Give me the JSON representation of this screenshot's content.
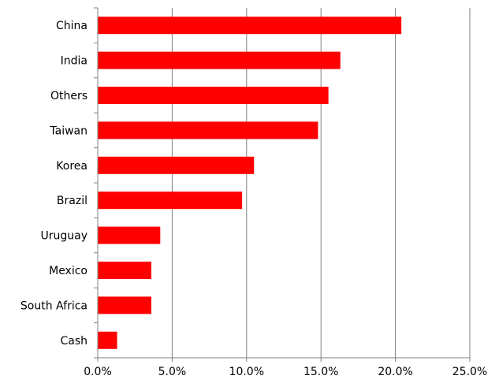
{
  "chart_data": {
    "type": "bar",
    "orientation": "horizontal",
    "categories": [
      "China",
      "India",
      "Others",
      "Taiwan",
      "Korea",
      "Brazil",
      "Uruguay",
      "Mexico",
      "South Africa",
      "Cash"
    ],
    "values": [
      20.4,
      16.3,
      15.5,
      14.8,
      10.5,
      9.7,
      4.2,
      3.6,
      3.6,
      1.3
    ],
    "title": "",
    "xlabel": "",
    "ylabel": "",
    "xlim": [
      0,
      25
    ],
    "xticks": [
      0,
      5,
      10,
      15,
      20,
      25
    ],
    "xtick_labels": [
      "0.0%",
      "5.0%",
      "10.0%",
      "15.0%",
      "20.0%",
      "25.0%"
    ],
    "grid": "vertical",
    "legend": "none",
    "bar_color": "#ff0000"
  }
}
